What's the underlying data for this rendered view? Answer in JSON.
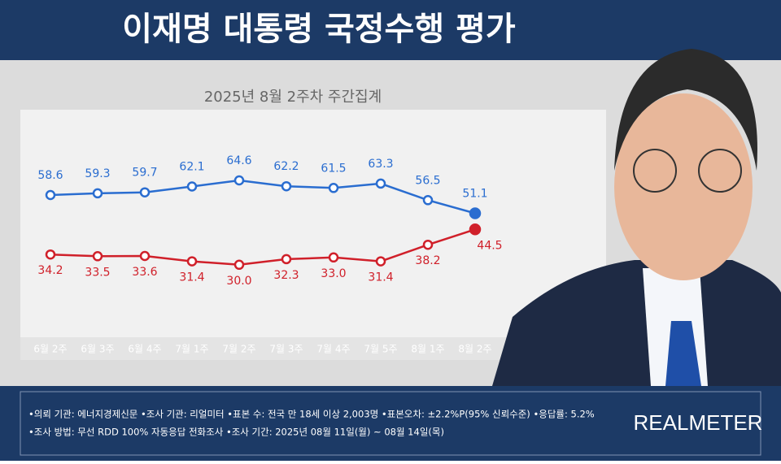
{
  "header": {
    "title": "이재명 대통령 국정수행 평가"
  },
  "chart_data": {
    "type": "line",
    "subtitle": "2025년 8월 2주차 주간집계",
    "categories": [
      "6월 2주",
      "6월 3주",
      "6월 4주",
      "7월 1주",
      "7월 2주",
      "7월 3주",
      "7월 4주",
      "7월 5주",
      "8월 1주",
      "8월 2주"
    ],
    "series": [
      {
        "color": "#2a6dd0",
        "values": [
          58.6,
          59.3,
          59.7,
          62.1,
          64.6,
          62.2,
          61.5,
          63.3,
          56.5,
          51.1
        ],
        "value_labels": [
          "58.6",
          "59.3",
          "59.7",
          "62.1",
          "64.6",
          "62.2",
          "61.5",
          "63.3",
          "56.5",
          "51.1"
        ]
      },
      {
        "color": "#d0202a",
        "values": [
          34.2,
          33.5,
          33.6,
          31.4,
          30.0,
          32.3,
          33.0,
          31.4,
          38.2,
          44.5
        ],
        "value_labels": [
          "34.2",
          "33.5",
          "33.6",
          "31.4",
          "30.0",
          "32.3",
          "33.0",
          "31.4",
          "38.2",
          "44.5"
        ]
      }
    ]
  },
  "footer": {
    "lines": [
      "•의뢰 기관: 에너지경제신문 •조사 기관: 리얼미터 •표본 수: 전국 만 18세 이상 2,003명 •표본오차: ±2.2%P(95% 신뢰수준) •응답률: 5.2%",
      "•조사 방법: 무선 RDD 100% 자동응답 전화조사 •조사 기간: 2025년 08월 11일(월) ~ 08월 14일(목)"
    ],
    "logo": "REALMETER"
  }
}
